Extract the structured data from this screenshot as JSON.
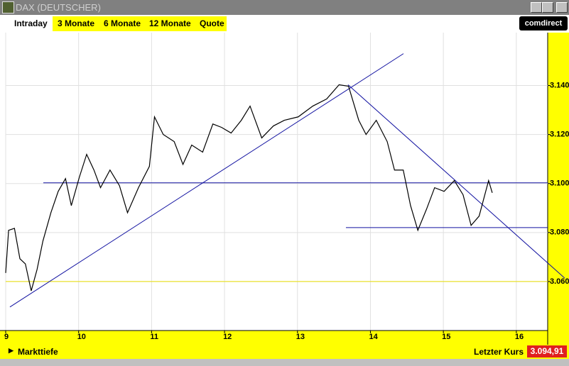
{
  "window": {
    "title": "DAX (DEUTSCHER)"
  },
  "tabs": [
    "Intraday",
    "3 Monate",
    "6 Monate",
    "12 Monate",
    "Quote"
  ],
  "logo": "comdirect",
  "footer": {
    "left": "Markttiefe",
    "price_label": "Letzter Kurs",
    "price": "3.094,91"
  },
  "chart_data": {
    "type": "line",
    "x": [
      9.0,
      9.04,
      9.12,
      9.195,
      9.27,
      9.35,
      9.43,
      9.51,
      9.62,
      9.72,
      9.82,
      9.9,
      10.01,
      10.11,
      10.21,
      10.3,
      10.43,
      10.56,
      10.67,
      10.82,
      10.97,
      11.04,
      11.16,
      11.31,
      11.43,
      11.55,
      11.7,
      11.84,
      11.96,
      12.09,
      12.23,
      12.35,
      12.51,
      12.67,
      12.82,
      13.01,
      13.21,
      13.4,
      13.57,
      13.7,
      13.84,
      13.94,
      14.08,
      14.23,
      14.33,
      14.45,
      14.55,
      14.65,
      14.77,
      14.88,
      15.01,
      15.15,
      15.27,
      15.38,
      15.49,
      15.62,
      15.67
    ],
    "series": [
      {
        "color": "#000000",
        "values": [
          3063.5,
          3080.9,
          3081.7,
          3069.3,
          3067.2,
          3056.2,
          3064.9,
          3076.5,
          3088.1,
          3096.8,
          3102.0,
          3091.0,
          3102.6,
          3111.9,
          3105.5,
          3098.3,
          3105.5,
          3099.1,
          3088.1,
          3098.3,
          3107.0,
          3127.2,
          3120.0,
          3117.1,
          3107.8,
          3115.7,
          3112.8,
          3124.3,
          3122.9,
          3120.6,
          3125.8,
          3131.6,
          3118.6,
          3123.5,
          3125.8,
          3127.2,
          3131.6,
          3134.5,
          3140.3,
          3139.7,
          3125.8,
          3120.0,
          3125.8,
          3117.1,
          3105.5,
          3105.5,
          3091.0,
          3080.9,
          3089.6,
          3098.3,
          3096.8,
          3101.2,
          3095.4,
          3082.9,
          3086.7,
          3101.2,
          3096.2
        ]
      }
    ],
    "lines": [
      {
        "color": "#e8e000",
        "x": [
          9.0,
          16.43
        ],
        "y": [
          3060,
          3060
        ]
      },
      {
        "color": "#1010a0",
        "x": [
          9.058,
          14.453
        ],
        "y": [
          3049.6,
          3153.0
        ]
      },
      {
        "color": "#1010a0",
        "x": [
          9.516,
          16.43
        ],
        "y": [
          3100.3,
          3100.3
        ]
      },
      {
        "color": "#1010a0",
        "x": [
          13.693,
          16.663
        ],
        "y": [
          3140.3,
          3061.4
        ]
      },
      {
        "color": "#1010a0",
        "x": [
          13.664,
          16.43
        ],
        "y": [
          3082,
          3082
        ]
      }
    ],
    "xlim": [
      9,
      16.43
    ],
    "ylim": [
      3040,
      3161
    ],
    "xticks": [
      9,
      10,
      11,
      12,
      13,
      14,
      15,
      16
    ],
    "yticks": [
      {
        "value": 3060,
        "label": "3.060"
      },
      {
        "value": 3080,
        "label": "3.080"
      },
      {
        "value": 3100,
        "label": "3.100"
      },
      {
        "value": 3120,
        "label": "3.120"
      },
      {
        "value": 3140,
        "label": "3.140"
      }
    ],
    "grid": true
  }
}
